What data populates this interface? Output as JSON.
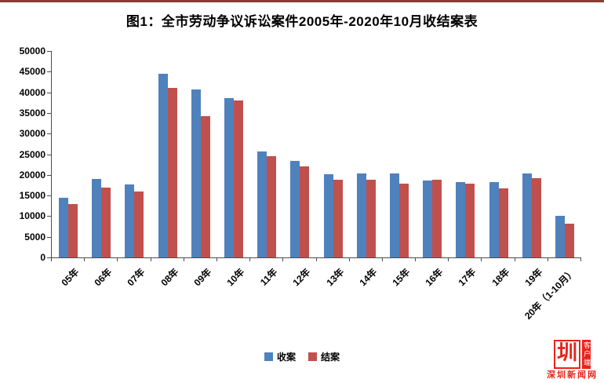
{
  "title": "图1：全市劳动争议诉讼案件2005年-2020年10月收结案表",
  "chart_data": {
    "type": "bar",
    "title": "图1：全市劳动争议诉讼案件2005年-2020年10月收结案表",
    "categories": [
      "05年",
      "06年",
      "07年",
      "08年",
      "09年",
      "10年",
      "11年",
      "12年",
      "13年",
      "14年",
      "15年",
      "16年",
      "17年",
      "18年",
      "19年",
      "20年（1-10月）"
    ],
    "series": [
      {
        "name": "收案",
        "color": "#4F81BD",
        "values": [
          14500,
          19000,
          17600,
          44500,
          40600,
          38600,
          25600,
          23400,
          20100,
          20300,
          20400,
          18600,
          18200,
          18200,
          20300,
          10000
        ]
      },
      {
        "name": "结案",
        "color": "#C0504D",
        "values": [
          13000,
          17000,
          16000,
          41000,
          34200,
          38000,
          24500,
          22000,
          18800,
          18800,
          17800,
          18800,
          17900,
          16700,
          19200,
          8200
        ]
      }
    ],
    "xlabel": "",
    "ylabel": "",
    "ylim": [
      0,
      50000
    ],
    "ytick_step": 5000,
    "grid": false,
    "legend_position": "bottom"
  },
  "watermark": {
    "logo_text": "圳",
    "client_label": "客户端",
    "site_name": "深圳新闻网",
    "color": "#e8231a"
  }
}
